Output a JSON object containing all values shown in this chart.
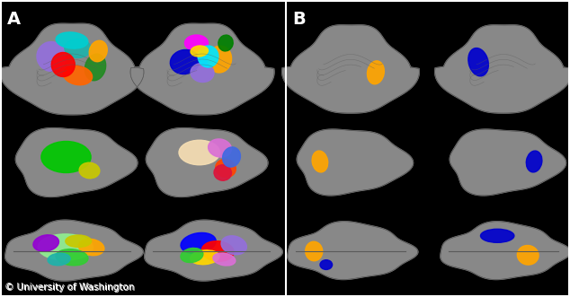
{
  "background_color": "#000000",
  "border_color": "#ffffff",
  "label_A": "A",
  "label_B": "B",
  "label_color": "#ffffff",
  "label_fontsize": 14,
  "copyright_text": "© University of Washington",
  "copyright_fontsize": 7.5,
  "copyright_color": "#ffffff",
  "divider_color": "#ffffff",
  "brain_gray": "#888888",
  "brain_dark": "#5a5a5a",
  "brain_shadow": "#3a3a3a",
  "fig_width": 6.34,
  "fig_height": 3.31,
  "dpi": 100,
  "panel_A": {
    "row1_left_colors": [
      "#9370db",
      "#20b2aa",
      "#228b22",
      "#ff6600",
      "#ff0000",
      "#00ced1",
      "#ffa500"
    ],
    "row1_right_colors": [
      "#ff00ff",
      "#ffa500",
      "#0000cd",
      "#9370db",
      "#00e5ff",
      "#ffd700",
      "#008000"
    ],
    "row2_left_colors": [
      "#00c800",
      "#c8c800"
    ],
    "row2_right_colors": [
      "#f5deb3",
      "#da70d6",
      "#ff4500",
      "#dc143c",
      "#4169e1"
    ],
    "row3_left_colors": [
      "#90ee90",
      "#9400d3",
      "#ffa500",
      "#32cd32",
      "#20b2aa",
      "#c8c800"
    ],
    "row3_right_colors": [
      "#0000ff",
      "#ff0000",
      "#9370db",
      "#ffd700",
      "#32cd32",
      "#da70d6"
    ]
  },
  "panel_B": {
    "row1_left_colors": [
      "#ffa500"
    ],
    "row1_right_colors": [
      "#0000cd"
    ],
    "row2_left_colors": [
      "#ffa500"
    ],
    "row2_right_colors": [
      "#0000cd"
    ],
    "row3_left_colors": [
      "#ffa500",
      "#0000cd"
    ],
    "row3_right_colors": [
      "#0000cd",
      "#ffa500"
    ]
  }
}
